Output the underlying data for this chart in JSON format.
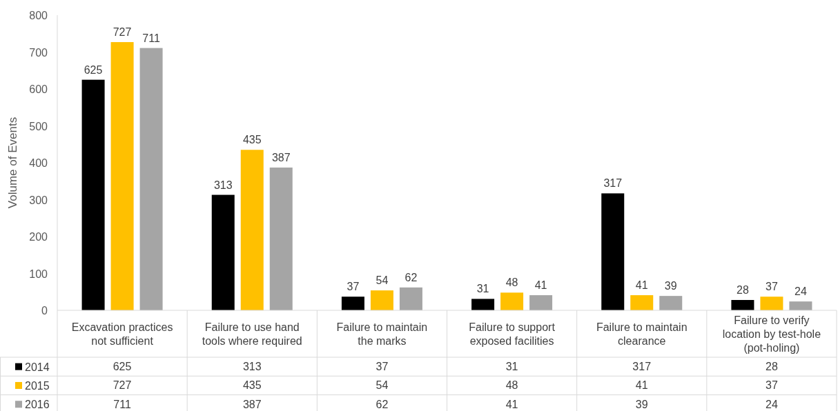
{
  "chart_data": {
    "type": "bar",
    "ylabel": "Volume of Events",
    "categories": [
      "Excavation practices not sufficient",
      "Failure to use hand tools where required",
      "Failure to maintain the marks",
      "Failure to support exposed facilities",
      "Failure to maintain clearance",
      "Failure to verify location by test-hole (pot-holing)"
    ],
    "series": [
      {
        "name": "2014",
        "color": "#000000",
        "values": [
          625,
          313,
          37,
          31,
          317,
          28
        ]
      },
      {
        "name": "2015",
        "color": "#ffc000",
        "values": [
          727,
          435,
          54,
          48,
          41,
          37
        ]
      },
      {
        "name": "2016",
        "color": "#a5a5a5",
        "values": [
          711,
          387,
          62,
          41,
          39,
          24
        ]
      }
    ],
    "annotations": [
      "625",
      "727",
      "711",
      "313",
      "435",
      "387",
      "37",
      "54",
      "62",
      "31",
      "48",
      "41",
      "317",
      "41",
      "39",
      "28",
      "37",
      "24"
    ],
    "ylim": [
      0,
      800
    ],
    "yticks": [
      0,
      100,
      200,
      300,
      400,
      500,
      600,
      700,
      800
    ],
    "data_labels": true,
    "legend": "bottom left"
  }
}
